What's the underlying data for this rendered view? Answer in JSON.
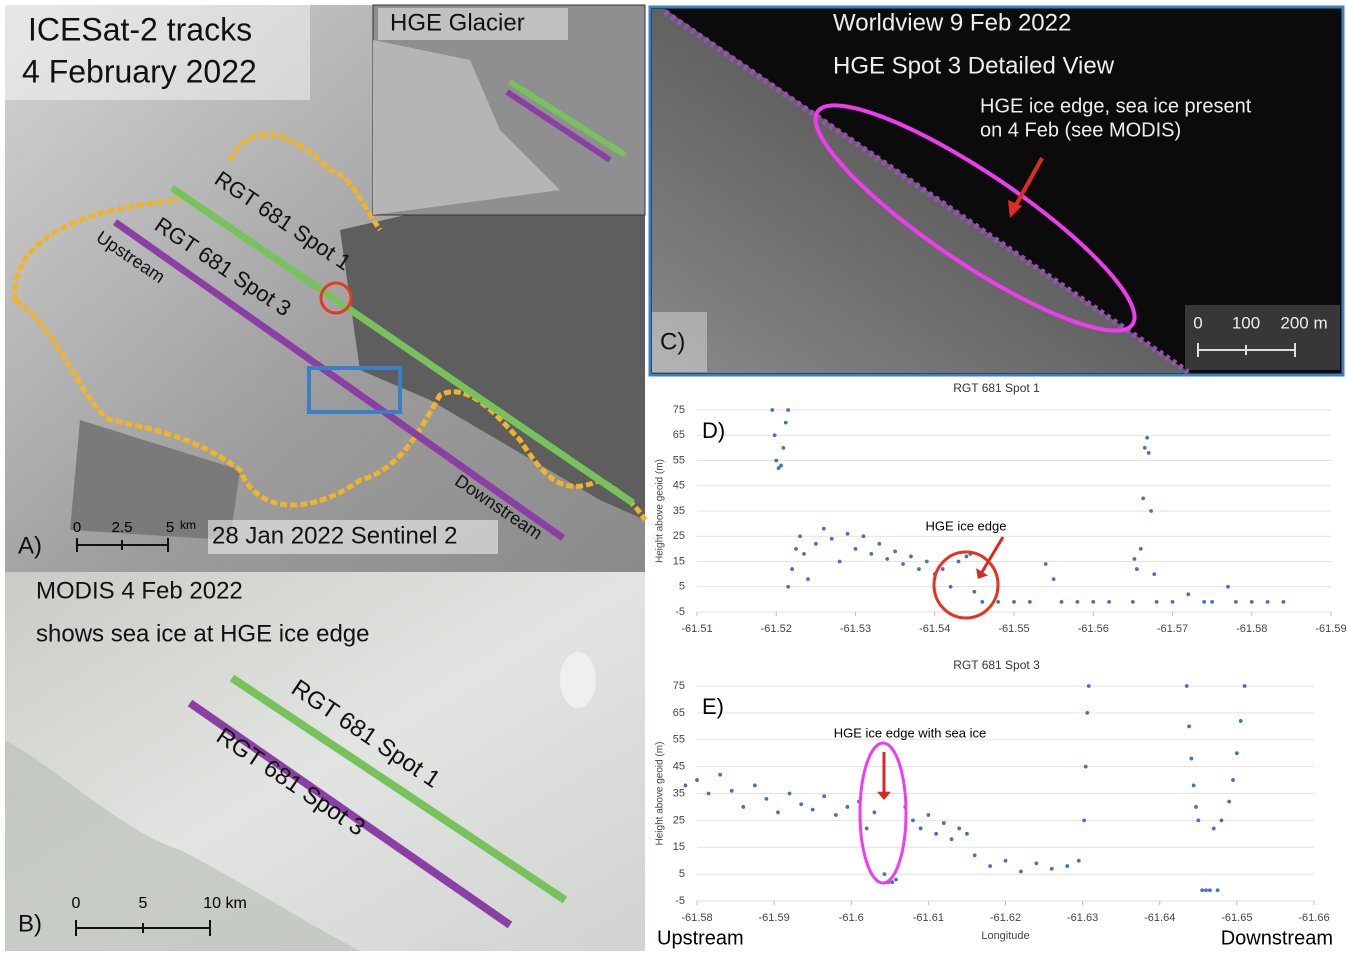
{
  "panel_a": {
    "title_lines": [
      "ICESat-2 tracks",
      "4 February 2022"
    ],
    "inset_title": "HGE Glacier",
    "track_labels": [
      "RGT 681 Spot 1",
      "RGT 681 Spot 3"
    ],
    "upstream": "Upstream",
    "downstream": "Downstream",
    "scale_labels": [
      "0",
      "2.5",
      "5"
    ],
    "scale_unit": "km",
    "source": "28 Jan 2022 Sentinel 2",
    "letter": "A)"
  },
  "panel_b": {
    "title_lines": [
      "MODIS 4 Feb 2022",
      "shows sea ice at HGE ice edge"
    ],
    "track_labels": [
      "RGT 681 Spot 1",
      "RGT 681 Spot 3"
    ],
    "scale_labels": [
      "0",
      "5",
      "10 km"
    ],
    "letter": "B)"
  },
  "panel_c": {
    "title_lines": [
      "Worldview 9 Feb 2022",
      "HGE Spot 3 Detailed View"
    ],
    "annotation_lines": [
      "HGE ice edge,  sea ice present",
      "on 4 Feb (see MODIS)"
    ],
    "scale_labels": [
      "0",
      "100",
      "200 m"
    ],
    "letter": "C)"
  },
  "footer": {
    "left": "Upstream",
    "right": "Downstream"
  },
  "chart_data": [
    {
      "type": "scatter",
      "title": "RGT 681 Spot 1",
      "label": "D)",
      "y_label": "Height above geoid (m)",
      "annotation": "HGE ice edge",
      "color": "#4472c4",
      "x": [
        -61.5195,
        -61.5198,
        -61.52,
        -61.5203,
        -61.5206,
        -61.5209,
        -61.5212,
        -61.5215,
        -61.5215,
        -61.522,
        -61.5225,
        -61.523,
        -61.5235,
        -61.524,
        -61.525,
        -61.526,
        -61.527,
        -61.528,
        -61.529,
        -61.53,
        -61.531,
        -61.532,
        -61.533,
        -61.534,
        -61.535,
        -61.536,
        -61.537,
        -61.538,
        -61.539,
        -61.54,
        -61.541,
        -61.542,
        -61.543,
        -61.544,
        -61.5445,
        -61.545,
        -61.546,
        -61.548,
        -61.55,
        -61.552,
        -61.554,
        -61.555,
        -61.556,
        -61.558,
        -61.56,
        -61.562,
        -61.565,
        -61.5652,
        -61.5655,
        -61.566,
        -61.5663,
        -61.5665,
        -61.5668,
        -61.567,
        -61.5673,
        -61.5677,
        -61.568,
        -61.57,
        -61.572,
        -61.574,
        -61.575,
        -61.577,
        -61.578,
        -61.58,
        -61.582,
        -61.584
      ],
      "values": [
        75,
        65,
        55,
        52,
        53,
        60,
        70,
        75,
        5,
        12,
        20,
        25,
        18,
        8,
        22,
        28,
        24,
        15,
        26,
        20,
        25,
        18,
        22,
        16,
        19,
        14,
        17,
        12,
        15,
        10,
        12,
        5,
        15,
        17,
        18,
        3,
        -1,
        -1,
        -1,
        -1,
        14,
        8,
        -1,
        -1,
        -1,
        -1,
        -1,
        16,
        12,
        20,
        40,
        60,
        64,
        58,
        35,
        10,
        -1,
        -1,
        2,
        -1,
        -1,
        5,
        -1,
        -1,
        -1,
        -1
      ],
      "xlim": [
        -61.51,
        -61.59
      ],
      "xticks": [
        -61.51,
        -61.52,
        -61.53,
        -61.54,
        -61.55,
        -61.56,
        -61.57,
        -61.58,
        -61.59
      ],
      "ylim": [
        -5,
        75
      ],
      "yticks": [
        -5,
        5,
        15,
        25,
        35,
        45,
        55,
        65,
        75
      ],
      "grid": true
    },
    {
      "type": "scatter",
      "title": "RGT 681 Spot 3",
      "label": "E)",
      "y_label": "Height above geoid (m)",
      "x_label": "Longitude",
      "annotation": "HGE ice edge with sea ice",
      "color": "#4472c4",
      "x": [
        -61.5785,
        -61.58,
        -61.5815,
        -61.583,
        -61.5845,
        -61.586,
        -61.5875,
        -61.589,
        -61.5905,
        -61.592,
        -61.5935,
        -61.595,
        -61.5965,
        -61.598,
        -61.5995,
        -61.601,
        -61.602,
        -61.603,
        -61.6043,
        -61.6048,
        -61.6053,
        -61.6058,
        -61.607,
        -61.608,
        -61.609,
        -61.61,
        -61.611,
        -61.612,
        -61.613,
        -61.614,
        -61.615,
        -61.616,
        -61.618,
        -61.62,
        -61.622,
        -61.624,
        -61.626,
        -61.628,
        -61.6295,
        -61.6302,
        -61.6304,
        -61.6306,
        -61.6308,
        -61.6435,
        -61.6438,
        -61.6441,
        -61.6444,
        -61.6447,
        -61.645,
        -61.6455,
        -61.646,
        -61.6465,
        -61.647,
        -61.6475,
        -61.648,
        -61.649,
        -61.6495,
        -61.65,
        -61.6505,
        -61.651
      ],
      "values": [
        38,
        40,
        35,
        42,
        36,
        30,
        38,
        33,
        28,
        35,
        31,
        29,
        34,
        27,
        30,
        32,
        22,
        28,
        5,
        2,
        2,
        3,
        30,
        25,
        22,
        27,
        20,
        24,
        18,
        22,
        20,
        12,
        8,
        10,
        6,
        9,
        7,
        8,
        10,
        25,
        45,
        65,
        75,
        75,
        60,
        48,
        38,
        30,
        25,
        -1,
        -1,
        -1,
        22,
        -1,
        25,
        32,
        40,
        50,
        62,
        75
      ],
      "xlim": [
        -61.58,
        -61.66
      ],
      "xticks": [
        -61.58,
        -61.59,
        -61.6,
        -61.61,
        -61.62,
        -61.63,
        -61.64,
        -61.65,
        -61.66
      ],
      "ylim": [
        -5,
        75
      ],
      "yticks": [
        -5,
        5,
        15,
        25,
        35,
        45,
        55,
        65,
        75
      ],
      "grid": true
    }
  ]
}
